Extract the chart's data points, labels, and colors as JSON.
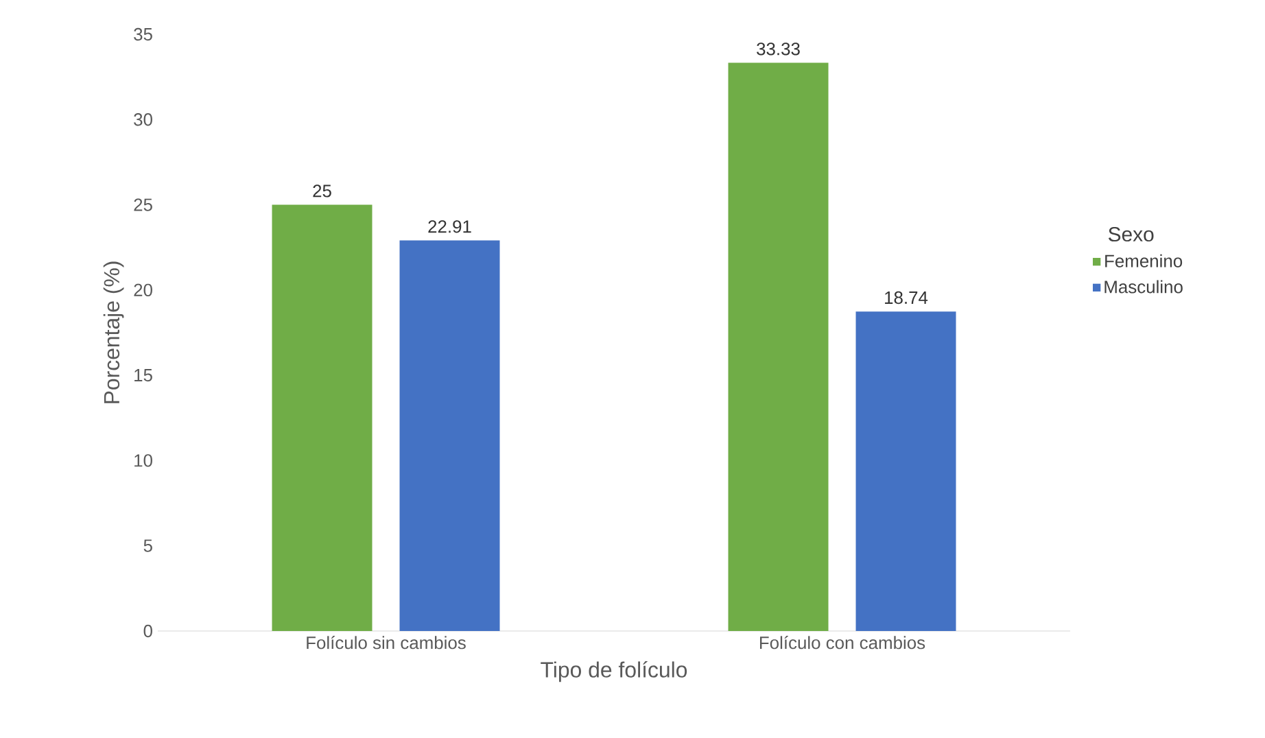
{
  "chart_data": {
    "type": "bar",
    "xlabel": "Tipo de folículo",
    "ylabel": "Porcentaje (%)",
    "legend_title": "Sexo",
    "categories": [
      "Folículo sin cambios",
      "Folículo con cambios"
    ],
    "series": [
      {
        "name": "Femenino",
        "color": "#70ad47",
        "values": [
          25,
          33.33
        ]
      },
      {
        "name": "Masculino",
        "color": "#4472c4",
        "values": [
          22.91,
          18.74
        ]
      }
    ],
    "ylim": [
      0,
      35
    ],
    "yticks": [
      0,
      5,
      10,
      15,
      20,
      25,
      30,
      35
    ],
    "grid": false,
    "legend": "right",
    "data_labels": true
  }
}
